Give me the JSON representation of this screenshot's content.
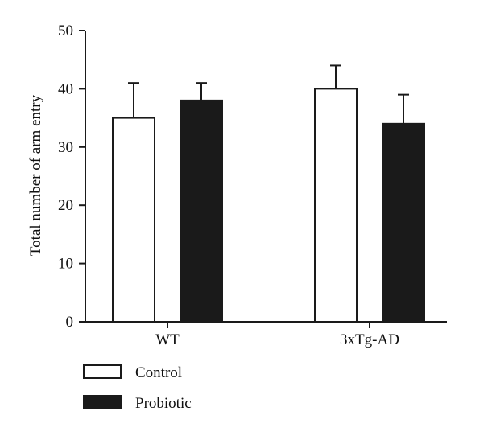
{
  "chart_data": {
    "type": "bar",
    "title": "",
    "xlabel": "",
    "ylabel": "Total number of arm entry",
    "ylim": [
      0,
      50
    ],
    "yticks": [
      0,
      10,
      20,
      30,
      40,
      50
    ],
    "categories": [
      "WT",
      "3xTg-AD"
    ],
    "series": [
      {
        "name": "Control",
        "color": "#ffffff",
        "values": [
          35,
          40
        ],
        "error": [
          6,
          4
        ]
      },
      {
        "name": "Probiotic",
        "color": "#1a1a1a",
        "values": [
          38,
          34
        ],
        "error": [
          3,
          5
        ]
      }
    ],
    "grid": false,
    "legend_position": "bottom-left"
  }
}
